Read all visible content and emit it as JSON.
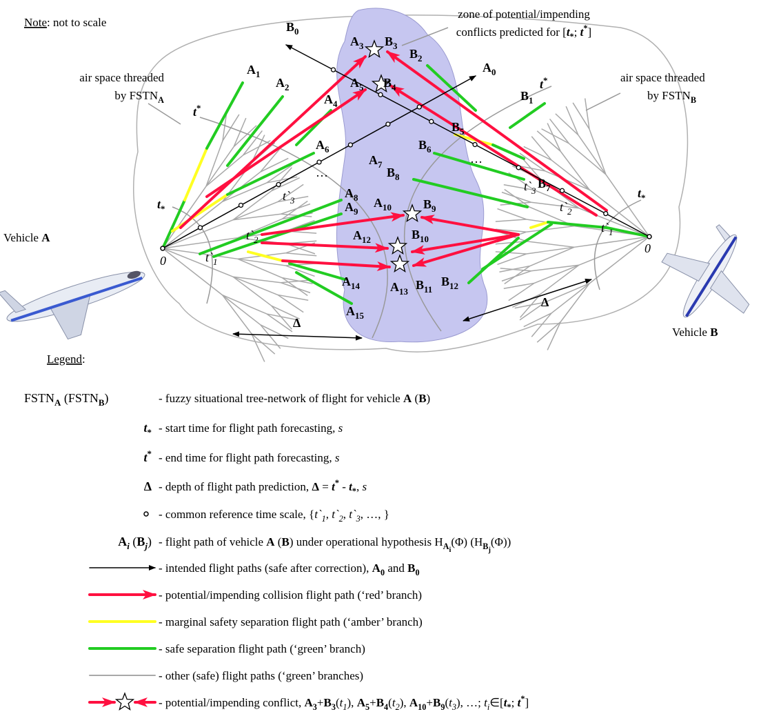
{
  "note": [
    "Note",
    ": not to scale"
  ],
  "zone_label": [
    [
      "zone of potential/impending"
    ],
    [
      "conflicts predicted for [",
      "t",
      "*",
      "; ",
      "t",
      "*",
      "]"
    ]
  ],
  "airspace_a": [
    [
      "air space threaded"
    ],
    [
      "by FSTN",
      "A"
    ]
  ],
  "airspace_b": [
    [
      "air space threaded"
    ],
    [
      "by FSTN",
      "B"
    ]
  ],
  "vehicle_a": [
    "Vehicle ",
    "A"
  ],
  "vehicle_b": [
    "Vehicle ",
    "B"
  ],
  "labels": [
    [
      "B",
      "0"
    ],
    [
      "A",
      "3"
    ],
    [
      "B",
      "3"
    ],
    [
      "B",
      "2"
    ],
    [
      "A",
      "0"
    ],
    [
      "B",
      "1"
    ],
    [
      "t",
      "*"
    ],
    [
      "A",
      "1"
    ],
    [
      "A",
      "2"
    ],
    [
      "A",
      "5"
    ],
    [
      "B",
      "4"
    ],
    [
      "A",
      "4"
    ],
    [
      "t",
      "*"
    ],
    [
      "B",
      "5"
    ],
    [
      "A",
      "6"
    ],
    [
      "B",
      "6"
    ],
    [
      "A",
      "7"
    ],
    [
      "B",
      "8"
    ],
    [
      "B",
      "7"
    ],
    [
      "t",
      "*"
    ],
    [
      "A",
      "8"
    ],
    [
      "A",
      "9"
    ],
    [
      "A",
      "10"
    ],
    [
      "B",
      "9"
    ],
    [
      "t",
      "*"
    ],
    [
      "A",
      "12"
    ],
    [
      "B",
      "10"
    ],
    [
      "A",
      "14"
    ],
    [
      "A",
      "13"
    ],
    [
      "B",
      "11"
    ],
    [
      "B",
      "12"
    ],
    [
      "A",
      "15"
    ],
    [
      "Δ"
    ],
    [
      "Δ"
    ],
    [
      "t`",
      "1"
    ],
    [
      "t`",
      "2"
    ],
    [
      "t`",
      "3"
    ],
    [
      "t`",
      "3"
    ],
    [
      "t`",
      "2"
    ],
    [
      "t`",
      "1"
    ],
    [
      "0"
    ],
    [
      "0"
    ],
    [
      "…"
    ],
    [
      "…"
    ]
  ],
  "legend": {
    "title": [
      "Legend",
      ":"
    ],
    "items": [
      {
        "symbol": [
          "FSTN",
          "A",
          " (FSTN",
          "B",
          ")"
        ],
        "text": [
          "- fuzzy situational tree-network of flight for vehicle ",
          "A",
          " (",
          "B",
          ")"
        ]
      },
      {
        "symbol": [
          "t",
          "*"
        ],
        "text": [
          "- start time for flight path forecasting, ",
          "s"
        ]
      },
      {
        "symbol": [
          "t",
          "*"
        ],
        "text": [
          "- end time for flight path forecasting, ",
          "s"
        ]
      },
      {
        "symbol": [
          "Δ"
        ],
        "text": [
          "- depth of flight path prediction, ",
          "Δ",
          " = ",
          "t",
          "*",
          " - ",
          "t",
          "*",
          ", ",
          "s"
        ]
      },
      {
        "text": [
          "- common reference time scale, {",
          "t`",
          "1",
          ", ",
          "t`",
          "2",
          ", ",
          "t`",
          "3",
          ", …, }"
        ]
      },
      {
        "symbol": [
          "A",
          "i",
          " (",
          "B",
          "j",
          ")"
        ],
        "text": [
          "- flight path of vehicle ",
          "A",
          " (",
          "B",
          ") under operational hypothesis ",
          "H",
          "A",
          "i",
          "(Φ)  (",
          "H",
          "B",
          "j",
          "(Φ))"
        ]
      },
      {
        "text": [
          "- intended flight paths (safe after correction), ",
          "A",
          "0",
          " and ",
          "B",
          "0"
        ]
      },
      {
        "text": [
          "- potential/impending collision flight path (‘red’ branch)"
        ]
      },
      {
        "text": [
          "- marginal safety separation flight path (‘amber’ branch)"
        ]
      },
      {
        "text": [
          "- safe separation flight path (‘green’ branch)"
        ]
      },
      {
        "text": [
          "- other (safe) flight paths (‘green’ branches)"
        ]
      },
      {
        "text": [
          "- potential/impending conflict, ",
          "A",
          "3",
          "+",
          "B",
          "3",
          "(",
          "t",
          "1",
          "), ",
          "A",
          "5",
          "+",
          "B",
          "4",
          "(",
          "t",
          "2",
          "), ",
          "A",
          "10",
          "+",
          "B",
          "9",
          "(",
          "t",
          "3",
          "), …; ",
          "t",
          "i",
          "∈[",
          "t",
          "*",
          "; ",
          "t",
          "*",
          "]"
        ]
      }
    ]
  }
}
